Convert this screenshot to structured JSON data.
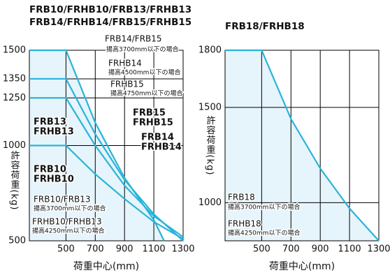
{
  "chart_data": [
    {
      "type": "line",
      "title": [
        "FRB10/FRHB10/FRB13/FRHB13",
        "FRB14/FRHB14/FRB15/FRHB15"
      ],
      "xlabel": "荷重中心(mm)",
      "ylabel": "許容荷重(kg)",
      "xlim": [
        250,
        1300
      ],
      "ylim": [
        500,
        1500
      ],
      "xticks": [
        500,
        700,
        900,
        1100,
        1300
      ],
      "yticks": [
        500,
        1000,
        1250,
        1350,
        1500
      ],
      "grid": true,
      "series": [
        {
          "color": "#29b4d8",
          "x": [
            250,
            500,
            700,
            900,
            1100,
            1170
          ],
          "values": [
            1500,
            1500,
            1120,
            830,
            610,
            500
          ]
        },
        {
          "color": "#29b4d8",
          "x": [
            250,
            500,
            700,
            900,
            1100,
            1300
          ],
          "values": [
            1350,
            1350,
            1060,
            820,
            640,
            500
          ]
        },
        {
          "color": "#29b4d8",
          "x": [
            250,
            500,
            700,
            900,
            1100,
            1300
          ],
          "values": [
            1250,
            1250,
            1000,
            790,
            630,
            520
          ]
        },
        {
          "color": "#29b4d8",
          "x": [
            250,
            500,
            700,
            900,
            1100,
            1300
          ],
          "values": [
            1000,
            1000,
            850,
            720,
            600,
            510
          ]
        }
      ],
      "annotations": [
        "FRB14/FRB15",
        "揚高3700mm以下の場合",
        "FRHB14",
        "揚高4500mm以下の場合",
        "FRHB15",
        "揚高4750mm以下の場合",
        "FRB15",
        "FRHB15",
        "FRB14",
        "FRHB14",
        "FRB13",
        "FRHB13",
        "FRB10",
        "FRHB10",
        "FRB10/FRB13",
        "揚高3700mm以下の場合",
        "FRHB10/FRHB13",
        "揚高4250mm以下の場合"
      ]
    },
    {
      "type": "line",
      "title": [
        "FRB18/FRHB18"
      ],
      "xlabel": "荷重中心(mm)",
      "ylabel": "許容荷重(kg)",
      "xlim": [
        250,
        1300
      ],
      "ylim": [
        800,
        1800
      ],
      "xticks": [
        500,
        700,
        900,
        1100,
        1300
      ],
      "yticks": [
        1000,
        1500,
        1800
      ],
      "grid": true,
      "series": [
        {
          "color": "#29b4d8",
          "x": [
            250,
            500,
            700,
            900,
            1100,
            1300
          ],
          "values": [
            1800,
            1800,
            1440,
            1180,
            970,
            800
          ]
        }
      ],
      "annotations": [
        "FRB18",
        "揚高3700mm以下の場合",
        "FRHB18",
        "揚高4250mm以下の場合"
      ]
    }
  ]
}
